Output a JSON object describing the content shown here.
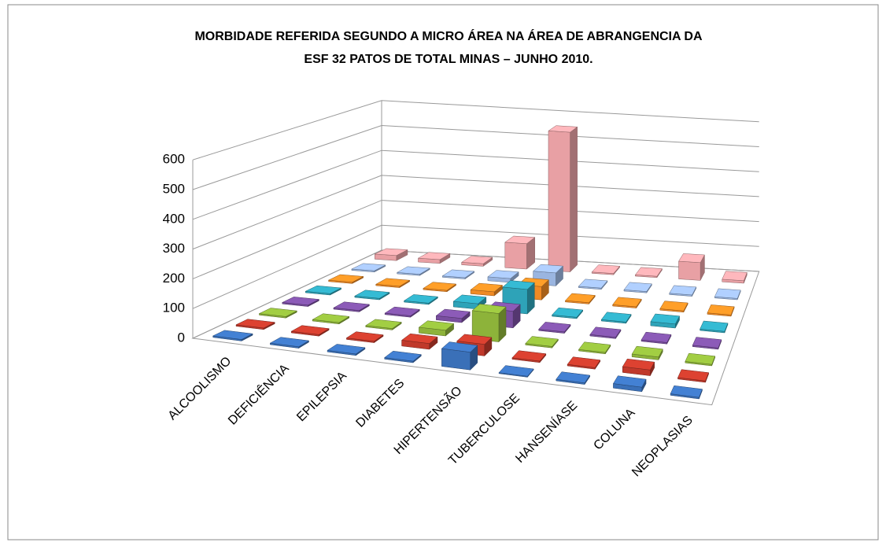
{
  "chart_data": {
    "type": "bar3d",
    "title": [
      "MORBIDADE REFERIDA SEGUNDO A MICRO ÁREA NA ÁREA DE ABRANGENCIA DA",
      "ESF 32 PATOS DE TOTAL MINAS – JUNHO 2010."
    ],
    "categories": [
      "ALCOOLISMO",
      "DEFICIÊNCIA",
      "EPILEPSIA",
      "DIABETES",
      "HIPERTENSÃO",
      "TUBERCULOSE",
      "HANSENÍASE",
      "COLUNA",
      "NEOPLASIAS"
    ],
    "series": [
      {
        "color": "#3a70b8",
        "values": [
          5,
          5,
          5,
          5,
          60,
          3,
          5,
          15,
          5
        ]
      },
      {
        "color": "#c0392b",
        "values": [
          5,
          5,
          5,
          20,
          40,
          5,
          5,
          20,
          5
        ]
      },
      {
        "color": "#8db33a",
        "values": [
          5,
          5,
          5,
          20,
          100,
          5,
          5,
          10,
          5
        ]
      },
      {
        "color": "#7a4fa0",
        "values": [
          5,
          5,
          5,
          15,
          60,
          5,
          5,
          5,
          5
        ]
      },
      {
        "color": "#2ea3b8",
        "values": [
          5,
          5,
          5,
          20,
          90,
          5,
          5,
          15,
          5
        ]
      },
      {
        "color": "#f08a24",
        "values": [
          5,
          5,
          5,
          15,
          50,
          5,
          5,
          5,
          5
        ]
      },
      {
        "color": "#9ab5e0",
        "values": [
          5,
          5,
          5,
          15,
          50,
          5,
          5,
          5,
          5
        ]
      },
      {
        "color": "#e8a0a4",
        "values": [
          20,
          15,
          10,
          100,
          550,
          5,
          5,
          70,
          10
        ]
      }
    ],
    "ylim": [
      0,
      600
    ],
    "yticks": [
      0,
      100,
      200,
      300,
      400,
      500,
      600
    ],
    "grid": true
  }
}
